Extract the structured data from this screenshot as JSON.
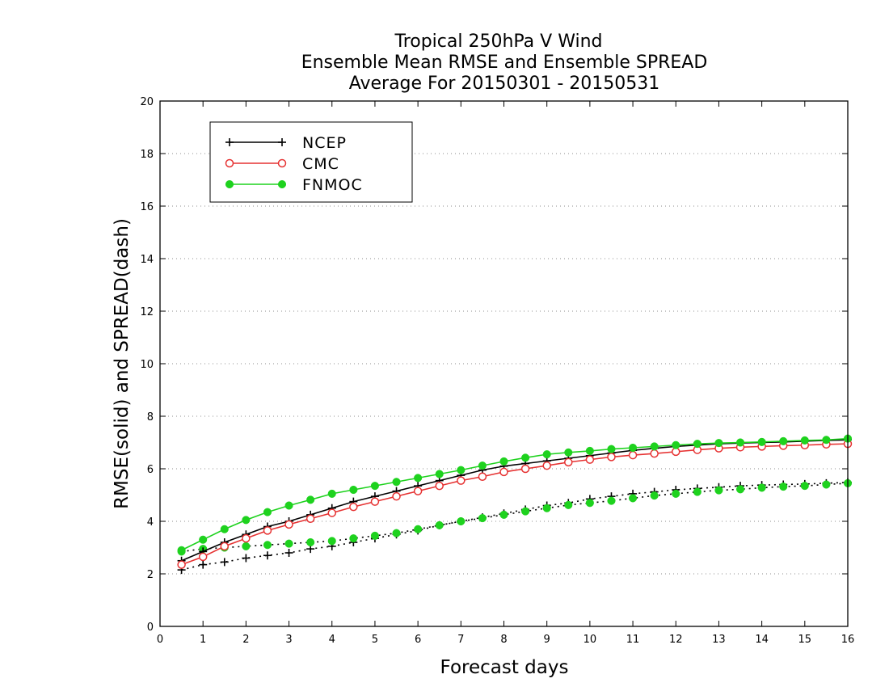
{
  "chart_data": {
    "type": "line",
    "title_lines": [
      "Tropical 250hPa V Wind",
      "Ensemble Mean RMSE and Ensemble SPREAD",
      "Average For 20150301 - 20150531"
    ],
    "xlabel": "Forecast days",
    "ylabel": "RMSE(solid) and SPREAD(dash)",
    "xlim": [
      0,
      16
    ],
    "ylim": [
      0,
      20
    ],
    "x_ticks": [
      "0",
      "1",
      "2",
      "3",
      "4",
      "5",
      "6",
      "7",
      "8",
      "9",
      "10",
      "11",
      "12",
      "13",
      "14",
      "15",
      "16"
    ],
    "y_ticks": [
      "0",
      "2",
      "4",
      "6",
      "8",
      "10",
      "12",
      "14",
      "16",
      "18",
      "20"
    ],
    "grid": "horizontal dotted",
    "legend_position": "top-left",
    "x": [
      0.5,
      1,
      1.5,
      2,
      2.5,
      3,
      3.5,
      4,
      4.5,
      5,
      5.5,
      6,
      6.5,
      7,
      7.5,
      8,
      8.5,
      9,
      9.5,
      10,
      10.5,
      11,
      11.5,
      12,
      12.5,
      13,
      13.5,
      14,
      14.5,
      15,
      15.5,
      16
    ],
    "series": [
      {
        "name": "NCEP",
        "color": "#000000",
        "marker": "plus",
        "rmse": [
          2.5,
          2.85,
          3.2,
          3.5,
          3.8,
          4.0,
          4.25,
          4.5,
          4.75,
          4.95,
          5.15,
          5.35,
          5.55,
          5.75,
          5.95,
          6.1,
          6.2,
          6.3,
          6.4,
          6.5,
          6.6,
          6.7,
          6.78,
          6.85,
          6.9,
          6.95,
          6.98,
          7.0,
          7.02,
          7.05,
          7.08,
          7.1
        ],
        "spread": [
          2.15,
          2.35,
          2.45,
          2.6,
          2.7,
          2.8,
          2.95,
          3.05,
          3.2,
          3.35,
          3.5,
          3.65,
          3.85,
          4.0,
          4.15,
          4.3,
          4.45,
          4.6,
          4.7,
          4.85,
          4.95,
          5.05,
          5.12,
          5.2,
          5.25,
          5.3,
          5.35,
          5.38,
          5.4,
          5.42,
          5.45,
          5.48
        ]
      },
      {
        "name": "CMC",
        "color": "#e63232",
        "marker": "open-circle",
        "rmse": [
          2.35,
          2.65,
          3.05,
          3.35,
          3.65,
          3.88,
          4.1,
          4.32,
          4.55,
          4.75,
          4.95,
          5.15,
          5.35,
          5.55,
          5.7,
          5.88,
          6.0,
          6.12,
          6.25,
          6.35,
          6.45,
          6.52,
          6.58,
          6.65,
          6.72,
          6.78,
          6.82,
          6.85,
          6.88,
          6.9,
          6.93,
          6.95
        ],
        "spread": []
      },
      {
        "name": "FNMOC",
        "color": "#1ed21e",
        "marker": "filled-circle",
        "rmse": [
          2.9,
          3.3,
          3.7,
          4.05,
          4.35,
          4.6,
          4.82,
          5.05,
          5.2,
          5.35,
          5.5,
          5.65,
          5.8,
          5.95,
          6.12,
          6.28,
          6.42,
          6.55,
          6.62,
          6.68,
          6.75,
          6.8,
          6.85,
          6.9,
          6.95,
          6.98,
          7.0,
          7.02,
          7.05,
          7.08,
          7.1,
          7.15
        ],
        "spread": [
          2.85,
          2.95,
          3.0,
          3.05,
          3.1,
          3.15,
          3.2,
          3.25,
          3.35,
          3.45,
          3.55,
          3.7,
          3.85,
          4.0,
          4.12,
          4.25,
          4.38,
          4.5,
          4.62,
          4.7,
          4.78,
          4.88,
          4.98,
          5.05,
          5.12,
          5.18,
          5.22,
          5.28,
          5.32,
          5.35,
          5.4,
          5.45
        ]
      }
    ]
  }
}
